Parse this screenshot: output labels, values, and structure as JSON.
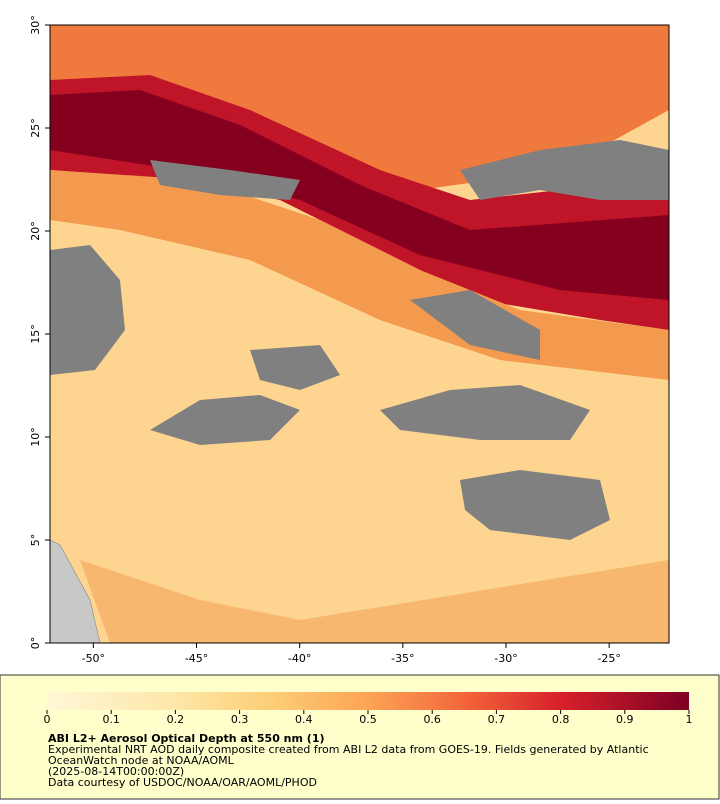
{
  "map": {
    "xlim": [
      -52.1,
      -22.1
    ],
    "ylim": [
      0,
      30
    ],
    "xticks": [
      {
        "value": -50,
        "label": "-50°"
      },
      {
        "value": -45,
        "label": "-45°"
      },
      {
        "value": -40,
        "label": "-40°"
      },
      {
        "value": -35,
        "label": "-35°"
      },
      {
        "value": -30,
        "label": "-30°"
      },
      {
        "value": -25,
        "label": "-25°"
      }
    ],
    "yticks": [
      {
        "value": 0,
        "label": "0°"
      },
      {
        "value": 5,
        "label": "5°"
      },
      {
        "value": 10,
        "label": "10°"
      },
      {
        "value": 15,
        "label": "15°"
      },
      {
        "value": 20,
        "label": "20°"
      },
      {
        "value": 25,
        "label": "25°"
      },
      {
        "value": 30,
        "label": "30°"
      }
    ]
  },
  "colorbar": {
    "lim": [
      0,
      1
    ],
    "ticks": [
      0,
      0.1,
      0.2,
      0.3,
      0.4,
      0.5,
      0.6,
      0.7,
      0.8,
      0.9,
      1
    ]
  },
  "caption": {
    "title": "ABI L2+ Aerosol Optical Depth at 550 nm (1)",
    "lines": [
      "Experimental NRT AOD daily composite created from ABI L2 data from GOES-19. Fields generated by Atlantic",
      "OceanWatch node at NOAA/AOML",
      "(2025-08-14T00:00:00Z)",
      "Data courtesy of USDOC/NOAA/OAR/AOML/PHOD"
    ]
  }
}
